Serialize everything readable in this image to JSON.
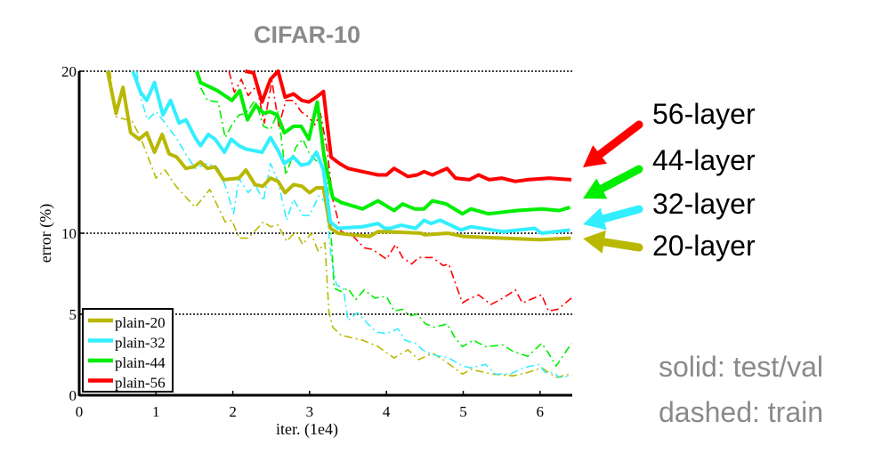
{
  "chart_data": {
    "type": "line",
    "title": "CIFAR-10",
    "xlabel": "iter. (1e4)",
    "ylabel": "error (%)",
    "xlim": [
      0,
      6.42
    ],
    "ylim": [
      0,
      20
    ],
    "xticks": [
      "0",
      "1",
      "2",
      "3",
      "4",
      "5",
      "6"
    ],
    "yticks": [
      "0",
      "5",
      "10",
      "20"
    ],
    "grid": "dotted horizontal lines at 5, 10, 20",
    "legend": "bottom-left",
    "series": [
      {
        "name": "plain-20",
        "color": "#b8b800",
        "style": "solid",
        "x": [
          0.37,
          0.48,
          0.57,
          0.67,
          0.78,
          0.88,
          0.98,
          1.08,
          1.17,
          1.27,
          1.39,
          1.49,
          1.58,
          1.67,
          1.77,
          1.88,
          2.08,
          2.17,
          2.29,
          2.39,
          2.49,
          2.59,
          2.68,
          2.79,
          2.9,
          3.0,
          3.09,
          3.18,
          3.27,
          3.37,
          3.55,
          3.78,
          3.89,
          4.0,
          4.45,
          4.5,
          4.8,
          5.0,
          5.5,
          6.0,
          6.4
        ],
        "y": [
          20,
          17.4,
          19.0,
          16.2,
          15.8,
          16.2,
          15.0,
          16.1,
          14.9,
          14.7,
          14.0,
          14.1,
          14.4,
          14.0,
          14.1,
          13.3,
          13.4,
          13.9,
          13.0,
          12.9,
          13.4,
          13.2,
          12.5,
          13.0,
          12.9,
          12.5,
          12.8,
          12.8,
          10.3,
          10.0,
          9.9,
          9.8,
          10.1,
          10.1,
          10.0,
          9.9,
          10.0,
          9.8,
          9.7,
          9.6,
          9.7
        ]
      },
      {
        "name": "plain-20 train",
        "color": "#b8b800",
        "style": "dashed",
        "x": [
          0.4,
          0.48,
          0.69,
          0.8,
          1.0,
          1.12,
          1.26,
          1.51,
          1.7,
          1.9,
          1.99,
          2.08,
          2.2,
          2.4,
          2.49,
          2.59,
          2.7,
          2.82,
          2.91,
          3.02,
          3.11,
          3.2,
          3.25,
          3.3,
          3.41,
          3.69,
          3.89,
          4.1,
          4.28,
          4.42,
          4.6,
          4.74,
          4.99,
          5.1,
          5.38,
          5.65,
          5.84,
          6.02,
          6.21,
          6.39
        ],
        "y": [
          20,
          17.2,
          16.9,
          15.9,
          13.4,
          13.9,
          12.9,
          11.6,
          12.7,
          10.7,
          10.8,
          9.7,
          9.7,
          10.7,
          10.4,
          10.5,
          9.5,
          10.1,
          9.3,
          10.0,
          8.9,
          9.4,
          5.2,
          4.2,
          3.7,
          3.4,
          3.0,
          2.3,
          2.8,
          2.2,
          2.6,
          2.2,
          1.3,
          1.6,
          1.3,
          1.2,
          1.4,
          1.7,
          1.1,
          1.3
        ]
      },
      {
        "name": "plain-32",
        "color": "#33eeff",
        "style": "solid",
        "x": [
          0.7,
          0.8,
          0.88,
          0.98,
          1.09,
          1.19,
          1.3,
          1.39,
          1.51,
          1.58,
          1.68,
          1.77,
          1.89,
          1.98,
          2.08,
          2.17,
          2.38,
          2.49,
          2.59,
          2.67,
          2.79,
          2.89,
          2.99,
          3.09,
          3.18,
          3.27,
          3.37,
          3.69,
          3.89,
          3.98,
          4.05,
          4.19,
          4.38,
          4.49,
          4.58,
          4.7,
          4.97,
          5.1,
          5.52,
          5.93,
          6.02,
          6.39
        ],
        "y": [
          20,
          18.7,
          18.2,
          19.3,
          17.3,
          18.2,
          16.8,
          17.0,
          15.9,
          15.4,
          16.1,
          15.8,
          15.0,
          15.8,
          15.4,
          15.2,
          15.0,
          15.9,
          15.1,
          14.3,
          14.7,
          14.2,
          14.3,
          15.0,
          13.9,
          10.7,
          10.3,
          10.4,
          10.6,
          10.3,
          10.3,
          10.5,
          10.3,
          10.8,
          10.6,
          10.8,
          10.2,
          10.4,
          10.1,
          10.3,
          10.0,
          10.2
        ]
      },
      {
        "name": "plain-32 train",
        "color": "#33eeff",
        "style": "dashed",
        "x": [
          0.75,
          0.8,
          0.89,
          1.0,
          1.12,
          1.26,
          1.4,
          1.51,
          1.67,
          1.81,
          1.92,
          2.01,
          2.08,
          2.2,
          2.29,
          2.4,
          2.49,
          2.59,
          2.7,
          2.79,
          2.91,
          3.0,
          3.12,
          3.21,
          3.28,
          3.35,
          3.44,
          3.5,
          3.62,
          3.76,
          3.87,
          4.0,
          4.15,
          4.24,
          4.38,
          4.47,
          4.6,
          4.81,
          4.99,
          5.1,
          5.29,
          5.42,
          5.61,
          5.79,
          5.98,
          6.07,
          6.18,
          6.25,
          6.41
        ],
        "y": [
          20,
          18.4,
          17.0,
          17.5,
          16.8,
          15.9,
          14.8,
          14.0,
          14.3,
          14.0,
          12.7,
          11.2,
          13.4,
          12.5,
          13.0,
          12.0,
          14.3,
          13.2,
          10.8,
          12.1,
          11.1,
          11.1,
          12.3,
          11.9,
          8.5,
          6.8,
          6.6,
          4.6,
          5.1,
          4.4,
          3.9,
          3.8,
          4.1,
          3.4,
          3.2,
          2.8,
          2.5,
          2.3,
          1.8,
          1.7,
          1.9,
          1.3,
          1.3,
          1.7,
          1.9,
          1.4,
          1.4,
          1.1,
          1.2
        ]
      },
      {
        "name": "plain-44",
        "color": "#00ee00",
        "style": "solid",
        "x": [
          1.53,
          1.58,
          1.8,
          1.99,
          2.09,
          2.19,
          2.3,
          2.4,
          2.48,
          2.58,
          2.67,
          2.79,
          2.89,
          2.99,
          3.1,
          3.19,
          3.3,
          3.41,
          3.69,
          3.89,
          4.1,
          4.21,
          4.37,
          4.49,
          4.6,
          4.78,
          4.99,
          5.1,
          5.33,
          5.7,
          6.02,
          6.25,
          6.39
        ],
        "y": [
          20,
          19.3,
          18.8,
          18.2,
          18.8,
          17.0,
          17.9,
          17.4,
          17.5,
          17.3,
          16.2,
          16.6,
          16.6,
          15.8,
          18.1,
          14.7,
          12.2,
          11.9,
          11.5,
          12.0,
          11.4,
          11.8,
          11.5,
          11.5,
          12.0,
          11.8,
          11.2,
          11.5,
          11.2,
          11.4,
          11.5,
          11.4,
          11.6
        ]
      },
      {
        "name": "plain-44 train",
        "color": "#00ee00",
        "style": "dashed",
        "x": [
          1.55,
          1.58,
          1.67,
          1.81,
          1.9,
          1.99,
          2.08,
          2.17,
          2.29,
          2.4,
          2.49,
          2.59,
          2.69,
          2.82,
          2.91,
          3.0,
          3.12,
          3.21,
          3.28,
          3.32,
          3.41,
          3.5,
          3.6,
          3.71,
          3.85,
          4.0,
          4.1,
          4.21,
          4.3,
          4.4,
          4.51,
          4.63,
          4.79,
          4.9,
          4.99,
          5.13,
          5.29,
          5.52,
          5.65,
          5.84,
          6.02,
          6.11,
          6.21,
          6.41
        ],
        "y": [
          20,
          19.0,
          18.2,
          18.1,
          15.9,
          16.7,
          17.3,
          17.4,
          18.2,
          16.6,
          16.4,
          17.5,
          13.6,
          15.3,
          15.8,
          14.9,
          14.3,
          14.7,
          9.9,
          6.6,
          6.4,
          6.6,
          5.9,
          6.5,
          6.0,
          6.1,
          5.2,
          5.3,
          4.9,
          5.0,
          4.4,
          4.2,
          4.4,
          3.5,
          3.0,
          3.4,
          3.0,
          3.1,
          2.7,
          2.4,
          3.2,
          2.6,
          1.8,
          3.2
        ]
      },
      {
        "name": "plain-56",
        "color": "#ff0000",
        "style": "solid",
        "x": [
          2.16,
          2.27,
          2.38,
          2.49,
          2.59,
          2.68,
          2.79,
          2.9,
          2.99,
          3.09,
          3.18,
          3.28,
          3.39,
          3.5,
          3.69,
          3.89,
          4.0,
          4.1,
          4.28,
          4.4,
          4.49,
          4.6,
          4.79,
          4.9,
          5.08,
          5.2,
          5.34,
          5.5,
          5.68,
          5.84,
          6.12,
          6.41
        ],
        "y": [
          20,
          19.9,
          18.1,
          19.5,
          20,
          18.4,
          18.6,
          18.2,
          18.1,
          18.4,
          18.75,
          14.7,
          14.3,
          14.0,
          13.8,
          13.6,
          13.6,
          14.0,
          13.5,
          13.6,
          13.8,
          13.6,
          14.0,
          13.4,
          13.3,
          13.6,
          13.3,
          13.4,
          13.2,
          13.3,
          13.4,
          13.3
        ]
      },
      {
        "name": "plain-56 train",
        "color": "#ff0000",
        "style": "dashed",
        "x": [
          1.95,
          2.02,
          2.11,
          2.2,
          2.31,
          2.41,
          2.51,
          2.6,
          2.69,
          2.79,
          2.89,
          2.98,
          3.07,
          3.14,
          3.23,
          3.3,
          3.41,
          3.55,
          3.71,
          3.82,
          4.0,
          4.12,
          4.21,
          4.33,
          4.42,
          4.6,
          4.74,
          4.81,
          4.9,
          4.99,
          5.06,
          5.2,
          5.36,
          5.52,
          5.68,
          5.77,
          6.02,
          6.11,
          6.23,
          6.41
        ],
        "y": [
          20,
          18.7,
          19.5,
          18.5,
          19.1,
          16.8,
          19.4,
          16.6,
          18.2,
          18.2,
          17.5,
          17.2,
          16.7,
          17.4,
          15.1,
          12.1,
          10.1,
          9.9,
          9.1,
          9.0,
          8.4,
          9.3,
          8.5,
          8.1,
          8.5,
          8.5,
          8.0,
          8.1,
          6.9,
          5.7,
          5.9,
          6.2,
          5.6,
          6.0,
          6.5,
          5.7,
          6.2,
          5.2,
          5.3,
          6.0
        ]
      }
    ],
    "legend_entries": [
      "plain-20",
      "plain-32",
      "plain-44",
      "plain-56"
    ]
  },
  "annotations": {
    "arrows": [
      {
        "label": "56-layer",
        "color": "#ff0000"
      },
      {
        "label": "44-layer",
        "color": "#00ee00"
      },
      {
        "label": "32-layer",
        "color": "#33eeff"
      },
      {
        "label": "20-layer",
        "color": "#b8b800"
      }
    ],
    "note_solid": "solid: test/val",
    "note_dashed": "dashed: train"
  }
}
